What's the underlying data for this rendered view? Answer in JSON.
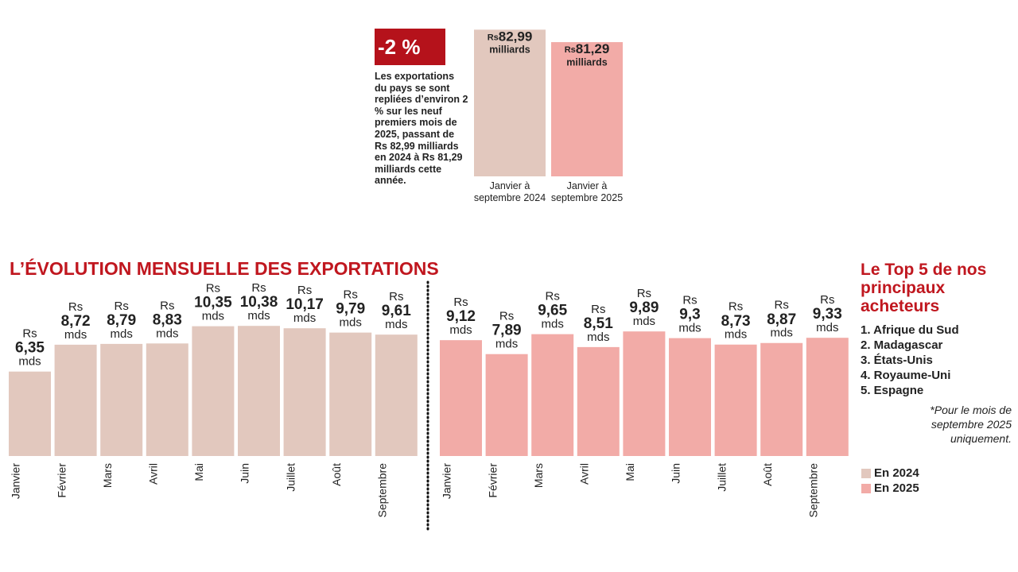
{
  "badge": "-2 %",
  "description": "Les exportations du pays se sont repliées d’environ 2 % sur les neuf premiers mois de 2025, passant de Rs 82,99 milliards en 2024 à Rs 81,29 milliards cette année.",
  "top5": {
    "title": "Le Top 5 de nos principaux acheteurs",
    "items": [
      "1. Afrique du Sud",
      "2. Madagascar",
      "3. États-Unis",
      "4. Royaume-Uni",
      "5. Espagne"
    ],
    "footnote": "*Pour le mois de septembre 2025 uniquement."
  },
  "chart_data": [
    {
      "type": "bar",
      "categories": [
        "Janvier à septembre 2024",
        "Janvier à septembre 2025"
      ],
      "values": [
        82.99,
        81.29
      ],
      "value_labels": [
        "82,99",
        "81,29"
      ],
      "value_prefix": "Rs",
      "value_unit": "milliards",
      "colors": [
        "#e2c8be",
        "#f2aba7"
      ],
      "ylim": [
        63,
        84
      ]
    },
    {
      "type": "bar",
      "title": "L’ÉVOLUTION MENSUELLE DES EXPORTATIONS",
      "categories": [
        "Janvier",
        "Février",
        "Mars",
        "Avril",
        "Mai",
        "Juin",
        "Juillet",
        "Août",
        "Septembre"
      ],
      "value_prefix": "Rs",
      "value_unit": "mds",
      "ylim": [
        -1.1,
        15.3
      ],
      "series": [
        {
          "name": "En 2024",
          "color": "#e2c8be",
          "values": [
            6.35,
            8.72,
            8.79,
            8.83,
            10.35,
            10.38,
            10.17,
            9.79,
            9.61
          ],
          "value_labels": [
            "6,35",
            "8,72",
            "8,79",
            "8,83",
            "10,35",
            "10,38",
            "10,17",
            "9,79",
            "9,61"
          ]
        },
        {
          "name": "En 2025",
          "color": "#f2aba7",
          "values": [
            9.12,
            7.89,
            9.65,
            8.51,
            9.89,
            9.3,
            8.73,
            8.87,
            9.33
          ],
          "value_labels": [
            "9,12",
            "7,89",
            "9,65",
            "8,51",
            "9,89",
            "9,3",
            "8,73",
            "8,87",
            "9,33"
          ]
        }
      ]
    }
  ]
}
